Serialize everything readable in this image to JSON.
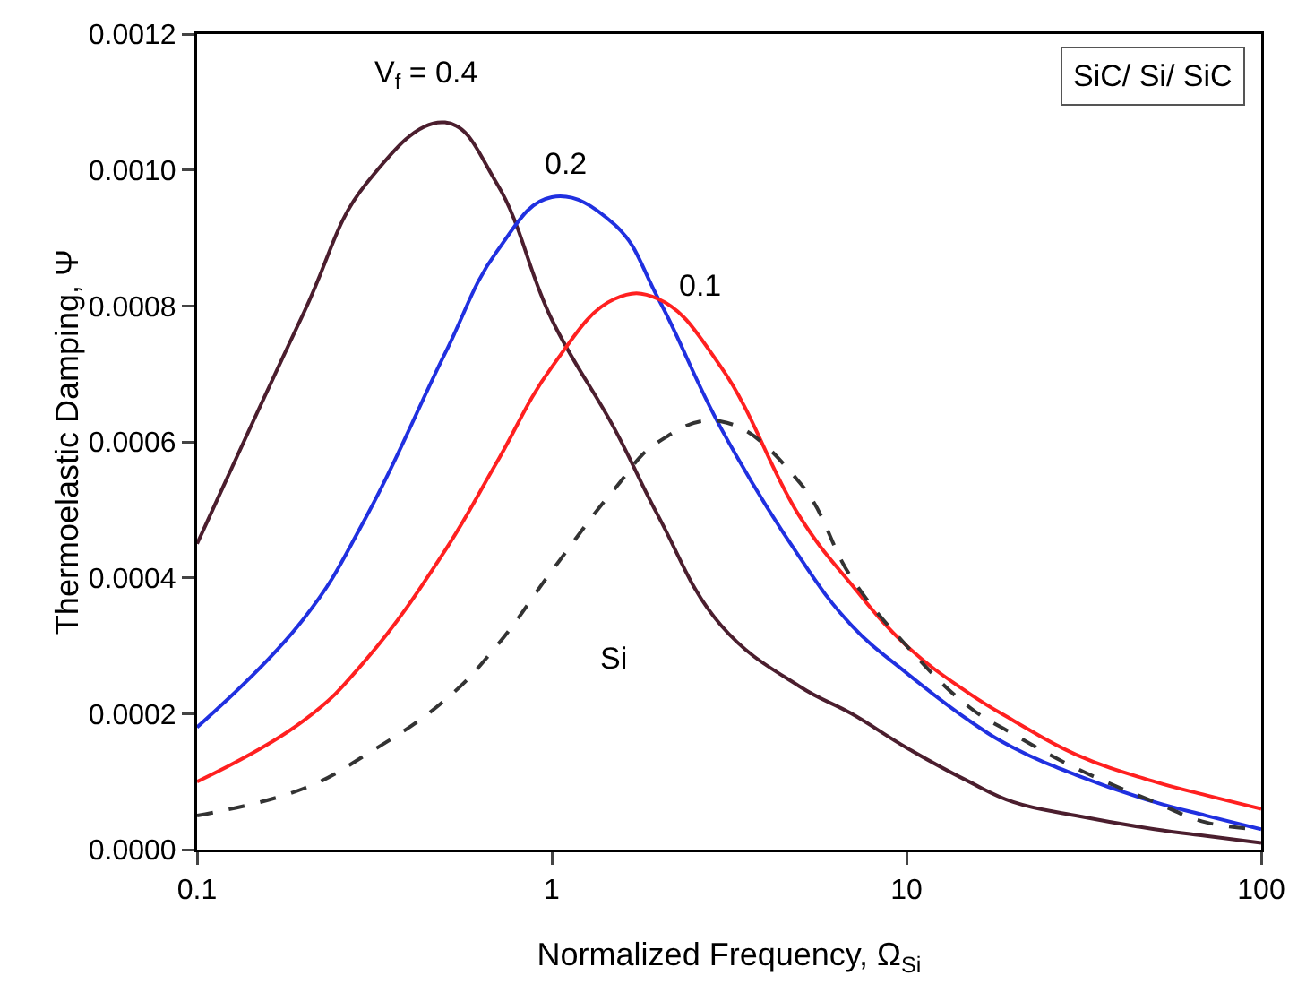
{
  "chart_data": {
    "type": "line",
    "xlabel": "Normalized Frequency, Ω$_{Si}$",
    "ylabel": "Thermoelastic Damping, Ψ",
    "log": "x",
    "grid": false,
    "legend": false,
    "marker": "none",
    "x": [
      0.1,
      0.2,
      0.3,
      0.5,
      0.7,
      1,
      1.5,
      2,
      3,
      5,
      7,
      10,
      15,
      20,
      30,
      50,
      70,
      100
    ],
    "xlim": [
      0.1,
      100
    ],
    "xticks": [
      0.1,
      1,
      10,
      100
    ],
    "ylim": [
      0,
      0.0012
    ],
    "yticks": [
      {
        "value": 0,
        "label": "0.0000"
      },
      {
        "value": 0.0002,
        "label": "0.0002"
      },
      {
        "value": 0.0004,
        "label": "0.0004"
      },
      {
        "value": 0.0006,
        "label": "0.0006"
      },
      {
        "value": 0.0008,
        "label": "0.0008"
      },
      {
        "value": 0.001,
        "label": "0.0010"
      },
      {
        "value": 0.0012,
        "label": "0.0012"
      }
    ],
    "series": [
      {
        "name": "V$_{f}$ = 0.4",
        "color": "#4b1e2e",
        "line_style": "solid",
        "values": [
          0.00045,
          0.00079,
          0.00098,
          0.00107,
          0.00098,
          0.00078,
          0.00062,
          0.00049,
          0.00033,
          0.00024,
          0.0002,
          0.00015,
          0.0001,
          7e-05,
          5e-05,
          3e-05,
          2e-05,
          1e-05
        ]
      },
      {
        "name": "0.2",
        "color": "#2030e0",
        "line_style": "solid",
        "values": [
          0.00018,
          0.00034,
          0.00049,
          0.00073,
          0.00088,
          0.00096,
          0.00092,
          0.00081,
          0.00062,
          0.00043,
          0.00033,
          0.00026,
          0.00019,
          0.00015,
          0.00011,
          7e-05,
          5e-05,
          3e-05
        ]
      },
      {
        "name": "0.1",
        "color": "#ff2020",
        "line_style": "solid",
        "values": [
          0.0001,
          0.00019,
          0.00028,
          0.00044,
          0.00057,
          0.00071,
          0.00081,
          0.00081,
          0.00071,
          0.00049,
          0.00039,
          0.0003,
          0.00023,
          0.00019,
          0.00014,
          0.0001,
          8e-05,
          6e-05
        ]
      },
      {
        "name": "Si",
        "color": "#333333",
        "line_style": "dashed",
        "values": [
          5e-05,
          9e-05,
          0.00014,
          0.00022,
          0.0003,
          0.00041,
          0.00053,
          0.0006,
          0.00063,
          0.00054,
          0.0004,
          0.0003,
          0.00021,
          0.00017,
          0.00012,
          7e-05,
          4e-05,
          3e-05
        ]
      }
    ],
    "annotations": [
      "SiC/ Si/ SiC"
    ]
  }
}
